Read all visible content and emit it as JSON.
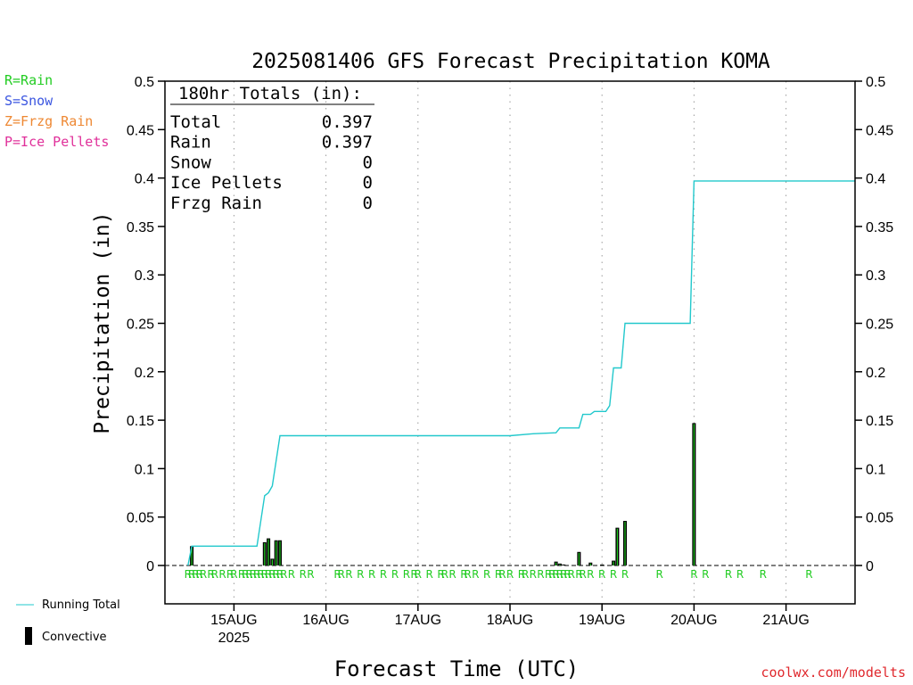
{
  "legend": {
    "rain": "R=Rain",
    "snow": "S=Snow",
    "frzg": "Z=Frzg Rain",
    "pellets": "P=Ice Pellets",
    "running_total": "Running Total",
    "convective": "Convective"
  },
  "colors": {
    "rain": "#22cc22",
    "snow": "#3a55e0",
    "frzg": "#ee8833",
    "pellets": "#e0309a",
    "running_total": "#22c8cc",
    "bar_fill": "#22cc22",
    "convective": "#000000",
    "credit": "#e0282d"
  },
  "totals_box": {
    "title": "180hr Totals (in):",
    "rows": [
      {
        "label": "Total",
        "value": "0.397"
      },
      {
        "label": "Rain",
        "value": "0.397"
      },
      {
        "label": "Snow",
        "value": "0"
      },
      {
        "label": "Ice Pellets",
        "value": "0"
      },
      {
        "label": "Frzg Rain",
        "value": "0"
      }
    ]
  },
  "credit": "coolwx.com/modelts",
  "chart_data": {
    "type": "bar",
    "title": "2025081406 GFS Forecast Precipitation KOMA",
    "xlabel": "Forecast Time (UTC)",
    "ylabel": "Precipitation (in)",
    "ylim": [
      0,
      0.5
    ],
    "y_ticks": [
      "0",
      "0.05",
      "0.1",
      "0.15",
      "0.2",
      "0.25",
      "0.3",
      "0.35",
      "0.4",
      "0.45",
      "0.5"
    ],
    "x_range_hours": [
      6,
      186
    ],
    "x_ticks": [
      {
        "hour": 24,
        "label": "15AUG",
        "sublabel": "2025"
      },
      {
        "hour": 48,
        "label": "16AUG"
      },
      {
        "hour": 72,
        "label": "17AUG"
      },
      {
        "hour": 96,
        "label": "18AUG"
      },
      {
        "hour": 120,
        "label": "19AUG"
      },
      {
        "hour": 144,
        "label": "20AUG"
      },
      {
        "hour": 168,
        "label": "21AUG"
      }
    ],
    "grid": "vertical dotted at day boundaries",
    "series": [
      {
        "name": "Running Total",
        "type": "line",
        "points": [
          [
            12,
            0
          ],
          [
            13,
            0.02
          ],
          [
            15,
            0.02
          ],
          [
            26,
            0.02
          ],
          [
            27,
            0.02
          ],
          [
            30,
            0.02
          ],
          [
            32,
            0.072
          ],
          [
            33,
            0.075
          ],
          [
            34,
            0.082
          ],
          [
            36,
            0.134
          ],
          [
            96,
            0.134
          ],
          [
            102,
            0.136
          ],
          [
            108,
            0.137
          ],
          [
            109,
            0.142
          ],
          [
            112,
            0.142
          ],
          [
            114,
            0.142
          ],
          [
            115,
            0.156
          ],
          [
            117,
            0.156
          ],
          [
            118,
            0.159
          ],
          [
            120,
            0.159
          ],
          [
            121,
            0.159
          ],
          [
            122,
            0.165
          ],
          [
            123,
            0.204
          ],
          [
            125,
            0.204
          ],
          [
            126,
            0.25
          ],
          [
            129,
            0.25
          ],
          [
            141,
            0.25
          ],
          [
            143,
            0.25
          ],
          [
            144,
            0.397
          ],
          [
            186,
            0.397
          ]
        ]
      },
      {
        "name": "Convective",
        "type": "bar",
        "hours": [
          13,
          32,
          33,
          34,
          35,
          36,
          108,
          109,
          110,
          114,
          117,
          120,
          123,
          124,
          126,
          127,
          143,
          144
        ],
        "values": [
          0.02,
          0.024,
          0.028,
          0.007,
          0.026,
          0.026,
          0.004,
          0.002,
          0.001,
          0.014,
          0.003,
          0.001,
          0.005,
          0.039,
          0.046,
          0.0,
          0.0,
          0.147
        ]
      }
    ],
    "precip_type_markers": {
      "label": "R",
      "hours": [
        12,
        13,
        14,
        15,
        16,
        18,
        19,
        21,
        23,
        24,
        26,
        27,
        28,
        29,
        30,
        31,
        32,
        33,
        34,
        35,
        36,
        37,
        39,
        42,
        44,
        51,
        52,
        54,
        57,
        60,
        63,
        66,
        69,
        71,
        72,
        75,
        78,
        79,
        81,
        84,
        85,
        87,
        90,
        93,
        94,
        96,
        99,
        100,
        102,
        104,
        106,
        107,
        108,
        109,
        110,
        111,
        112,
        114,
        115,
        117,
        120,
        123,
        126,
        135,
        144,
        147,
        153,
        156,
        162,
        174
      ]
    }
  }
}
